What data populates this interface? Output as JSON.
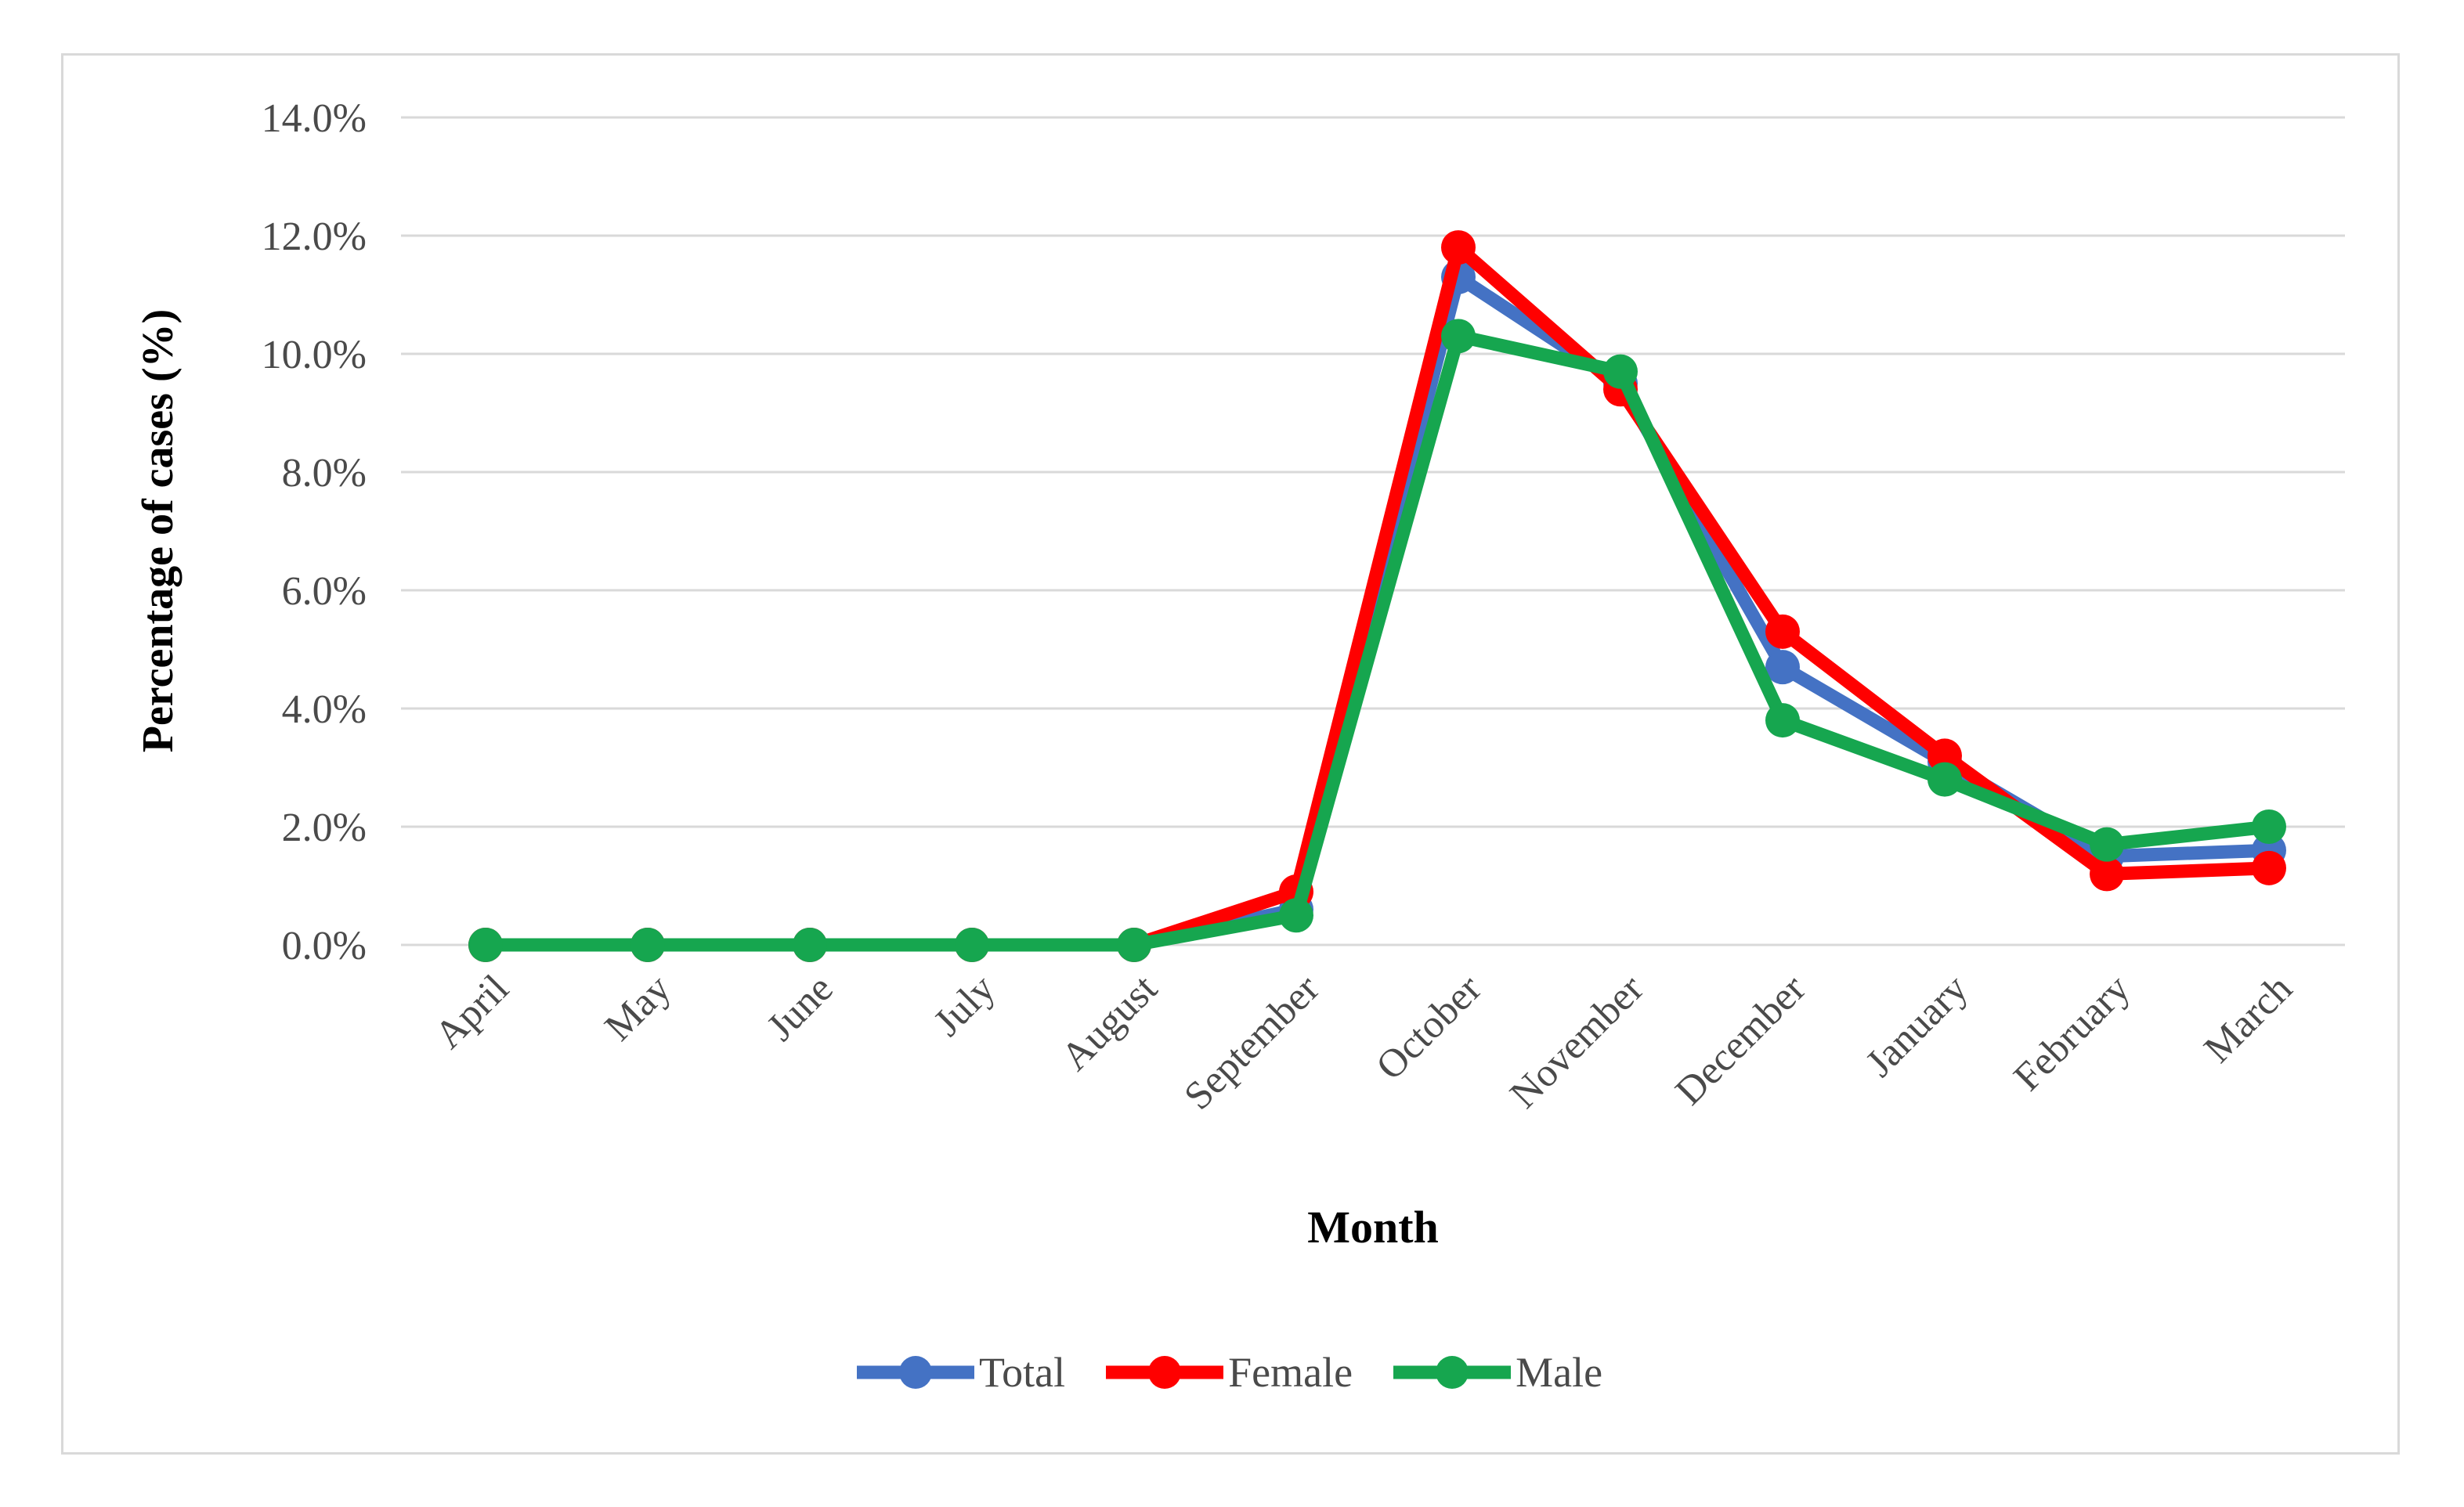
{
  "figure": {
    "y_axis_title": "Percentage of cases (%)",
    "x_axis_title": "Month",
    "background": "#ffffff",
    "border_color": "#d9d9d9",
    "gridline_color": "#d9d9d9",
    "tick_text_color": "#4a4a4a",
    "axis_title_color": "#000000"
  },
  "chart_data": {
    "type": "line",
    "title": "",
    "xlabel": "Month",
    "ylabel": "Percentage of cases (%)",
    "categories": [
      "April",
      "May",
      "June",
      "July",
      "August",
      "September",
      "October",
      "November",
      "December",
      "January",
      "February",
      "March"
    ],
    "series": [
      {
        "name": "Total",
        "color": "#4472C4",
        "values": [
          0.0,
          0.0,
          0.0,
          0.0,
          0.0,
          0.6,
          11.3,
          9.5,
          4.7,
          3.1,
          1.5,
          1.6
        ]
      },
      {
        "name": "Female",
        "color": "#FF0000",
        "values": [
          0.0,
          0.0,
          0.0,
          0.0,
          0.0,
          0.9,
          11.8,
          9.4,
          5.3,
          3.2,
          1.2,
          1.3
        ]
      },
      {
        "name": "Male",
        "color": "#16A64F",
        "values": [
          0.0,
          0.0,
          0.0,
          0.0,
          0.0,
          0.5,
          10.3,
          9.7,
          3.8,
          2.8,
          1.7,
          2.0
        ]
      }
    ],
    "ylim": [
      0,
      14
    ],
    "y_ticks": [
      "14.0%",
      "12.0%",
      "10.0%",
      "8.0%",
      "6.0%",
      "4.0%",
      "2.0%",
      "0.0%"
    ],
    "y_tick_values": [
      14,
      12,
      10,
      8,
      6,
      4,
      2,
      0
    ],
    "grid": true,
    "legend_position": "bottom",
    "marker": "circle"
  }
}
